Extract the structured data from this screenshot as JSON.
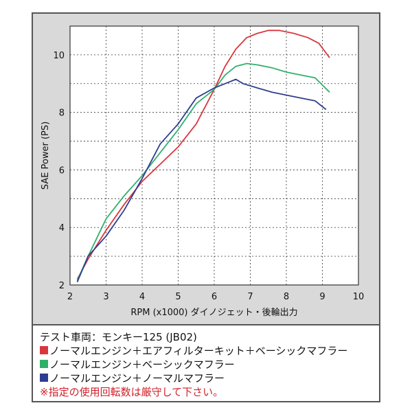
{
  "chart_data": {
    "type": "line",
    "xlabel": "RPM (x1000) ダイノジェット・後輪出力",
    "ylabel": "SAE Power (PS)",
    "xlim": [
      2,
      10
    ],
    "ylim": [
      2,
      11
    ],
    "xticks": [
      2,
      3,
      4,
      5,
      6,
      7,
      8,
      9,
      10
    ],
    "yticks": [
      2,
      4,
      6,
      8,
      10
    ],
    "grid": true,
    "series": [
      {
        "name": "ノーマルエンジン＋エアフィルターキット＋ベーシックマフラー",
        "color": "#d9363e",
        "x": [
          2.2,
          2.5,
          3.0,
          3.5,
          4.0,
          4.5,
          5.0,
          5.5,
          6.0,
          6.3,
          6.6,
          6.9,
          7.2,
          7.5,
          7.8,
          8.2,
          8.6,
          8.9,
          9.2
        ],
        "y": [
          2.2,
          2.9,
          3.9,
          4.8,
          5.6,
          6.2,
          6.8,
          7.6,
          8.8,
          9.6,
          10.2,
          10.6,
          10.75,
          10.85,
          10.85,
          10.75,
          10.6,
          10.4,
          9.9
        ]
      },
      {
        "name": "ノーマルエンジン＋ベーシックマフラー",
        "color": "#2fb06a",
        "x": [
          2.2,
          2.5,
          3.0,
          3.5,
          4.0,
          4.5,
          5.0,
          5.5,
          6.0,
          6.3,
          6.6,
          6.9,
          7.2,
          7.6,
          8.0,
          8.4,
          8.8,
          9.2
        ],
        "y": [
          2.15,
          3.0,
          4.3,
          5.1,
          5.8,
          6.6,
          7.4,
          8.3,
          8.8,
          9.3,
          9.6,
          9.7,
          9.65,
          9.55,
          9.4,
          9.3,
          9.2,
          8.7
        ]
      },
      {
        "name": "ノーマルエンジン＋ノーマルマフラー",
        "color": "#2e3d8f",
        "x": [
          2.2,
          2.5,
          3.0,
          3.5,
          4.0,
          4.5,
          5.0,
          5.5,
          6.0,
          6.3,
          6.6,
          6.8,
          7.2,
          7.6,
          8.0,
          8.4,
          8.8,
          9.1
        ],
        "y": [
          2.1,
          3.0,
          3.7,
          4.6,
          5.7,
          6.9,
          7.6,
          8.5,
          8.85,
          9.0,
          9.15,
          9.0,
          8.85,
          8.7,
          8.6,
          8.5,
          8.4,
          8.1
        ]
      }
    ]
  },
  "legend_title": "テスト車両：モンキー125 (JB02)",
  "note": "※指定の使用回転数は厳守して下さい。"
}
